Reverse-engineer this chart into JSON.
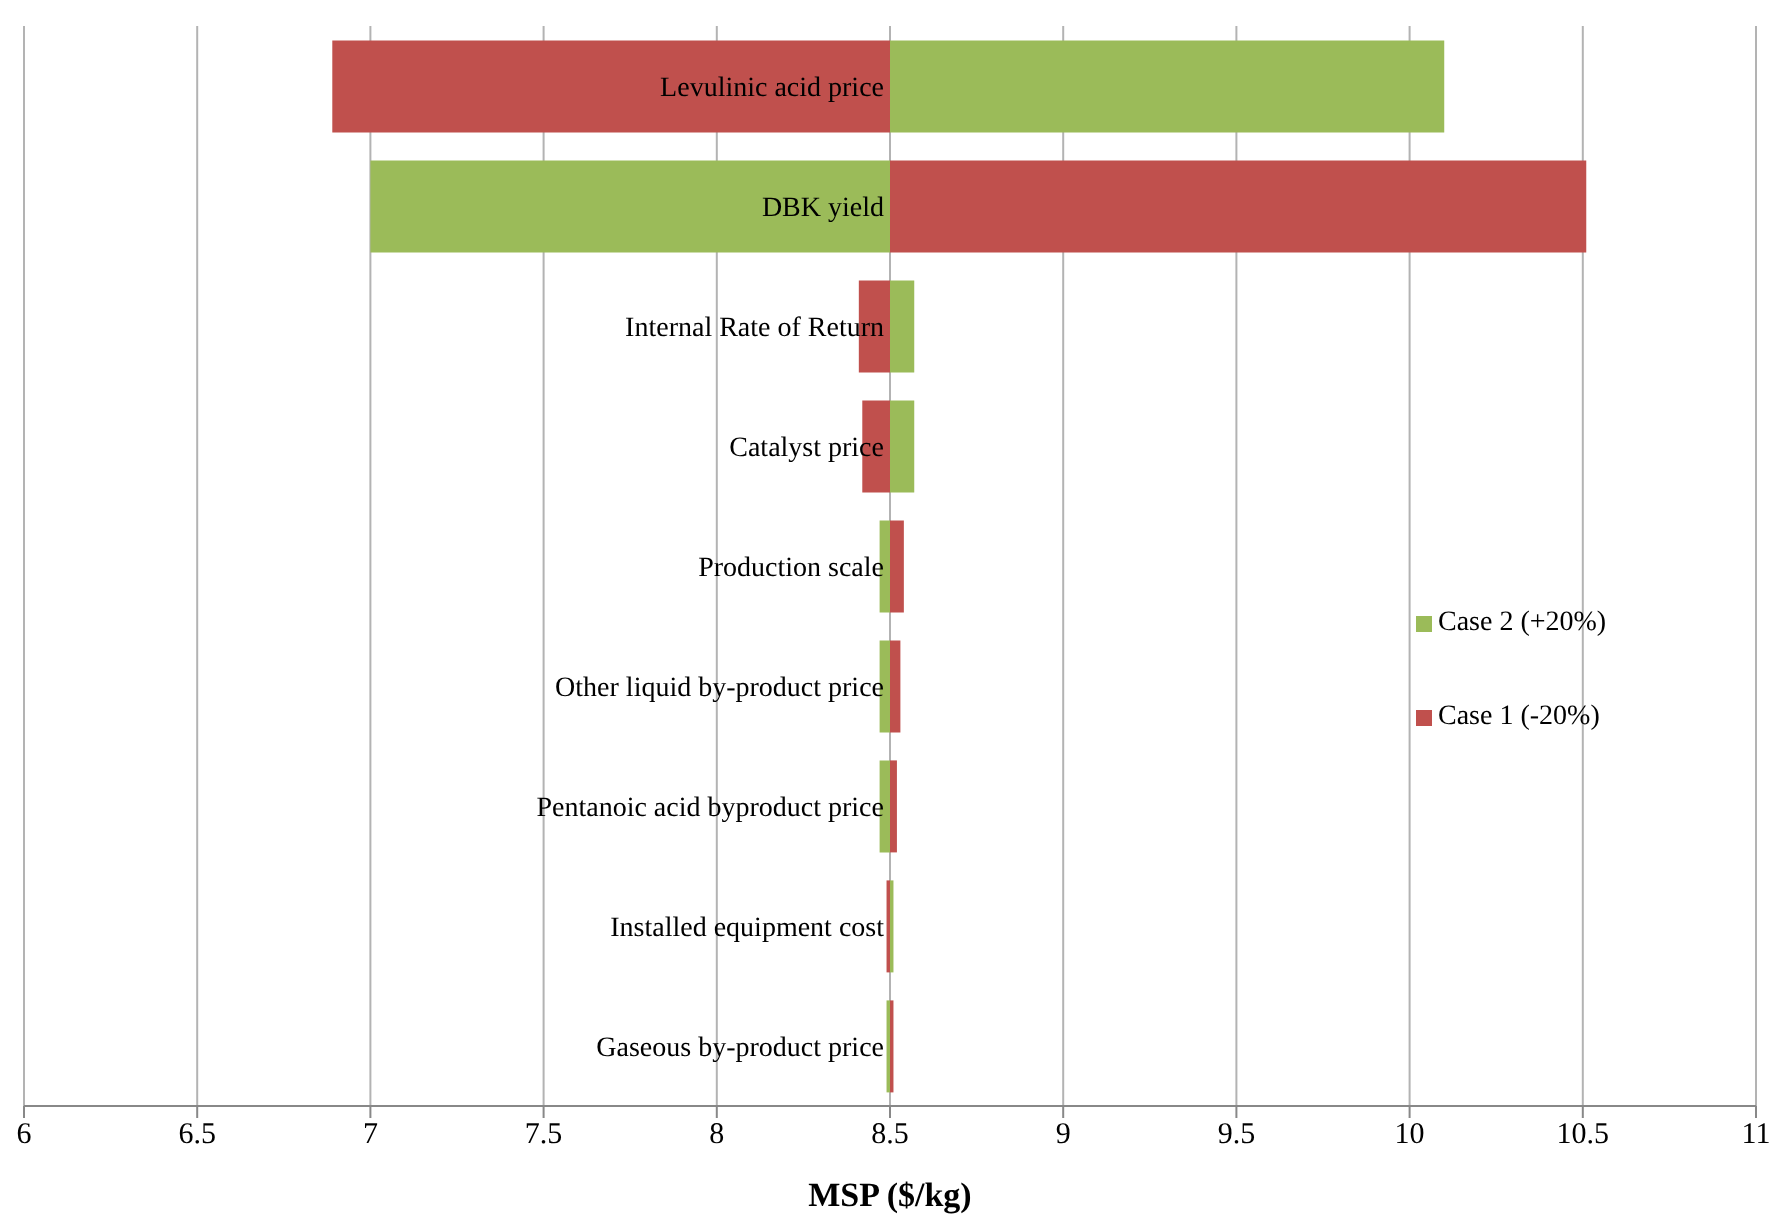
{
  "chart_data": {
    "type": "bar",
    "orientation": "horizontal",
    "xlabel": "MSP ($/kg)",
    "categories": [
      "Levulinic acid price",
      "DBK yield",
      "Internal Rate of Return",
      "Catalyst price",
      "Production scale",
      "Other liquid by-product price",
      "Pentanoic acid byproduct price",
      "Installed equipment cost",
      "Gaseous by-product price"
    ],
    "series": [
      {
        "name": "Case 2 (+20%)",
        "color": "#9bbb59",
        "base": [
          8.5,
          8.5,
          8.5,
          8.5,
          8.5,
          8.5,
          8.5,
          8.5,
          8.5
        ],
        "values": [
          1.6,
          -1.5,
          0.07,
          0.07,
          -0.03,
          -0.03,
          -0.03,
          0.01,
          -0.01
        ]
      },
      {
        "name": "Case 1 (-20%)",
        "color": "#c0504d",
        "base": [
          8.5,
          8.5,
          8.5,
          8.5,
          8.5,
          8.5,
          8.5,
          8.5,
          8.5
        ],
        "values": [
          -1.61,
          2.01,
          -0.09,
          -0.08,
          0.04,
          0.03,
          0.02,
          -0.01,
          0.01
        ]
      }
    ],
    "xlim": [
      6,
      11
    ],
    "xticks": [
      6,
      6.5,
      7,
      7.5,
      8,
      8.5,
      9,
      9.5,
      10,
      10.5,
      11
    ],
    "grid": "x",
    "legend": "right"
  }
}
